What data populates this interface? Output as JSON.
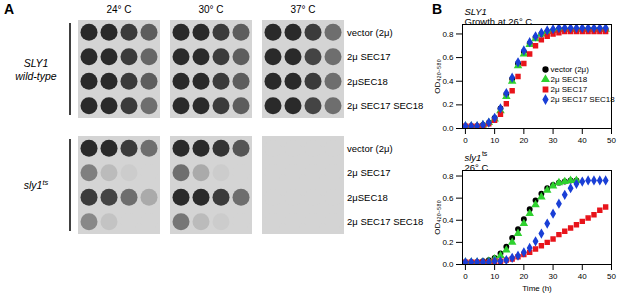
{
  "chart_data": [
    {
      "type": "spot",
      "panel": "A",
      "columns": [
        "24° C",
        "30° C",
        "37° C"
      ],
      "groups": [
        {
          "label": [
            "SLY1",
            "wild-type"
          ],
          "rows": [
            {
              "label": "vector (2μ)",
              "growth": [
                [
                  1,
                  1,
                  0.9,
                  0.7
                ],
                [
                  1,
                  1,
                  0.9,
                  0.7
                ],
                [
                  1,
                  1,
                  0.9,
                  0.6
                ]
              ]
            },
            {
              "label": "2μ SEC17",
              "growth": [
                [
                  1,
                  1,
                  0.9,
                  0.65
                ],
                [
                  1,
                  1,
                  0.9,
                  0.7
                ],
                [
                  1,
                  1,
                  0.85,
                  0.6
                ]
              ]
            },
            {
              "label": "2μSEC18",
              "growth": [
                [
                  1,
                  1,
                  0.9,
                  0.7
                ],
                [
                  1,
                  1,
                  0.9,
                  0.7
                ],
                [
                  1,
                  1,
                  0.9,
                  0.6
                ]
              ]
            },
            {
              "label": "2μ SEC17 SEC18",
              "growth": [
                [
                  1,
                  1,
                  0.9,
                  0.6
                ],
                [
                  1,
                  1,
                  0.9,
                  0.7
                ],
                [
                  1,
                  1,
                  0.85,
                  0.6
                ]
              ]
            }
          ]
        },
        {
          "label": [
            "sly1"
          ],
          "label_sup": "ts",
          "rows": [
            {
              "label": "vector (2μ)",
              "growth": [
                [
                  1,
                  1,
                  0.9,
                  0.6
                ],
                [
                  1,
                  1,
                  0.95,
                  0.75
                ],
                [
                  0,
                  0,
                  0,
                  0
                ]
              ]
            },
            {
              "label": "2μ SEC17",
              "growth": [
                [
                  0.5,
                  0.15,
                  0.05,
                  0
                ],
                [
                  0.6,
                  0.25,
                  0.05,
                  0
                ],
                [
                  0,
                  0,
                  0,
                  0
                ]
              ]
            },
            {
              "label": "2μSEC18",
              "growth": [
                [
                  0.9,
                  0.85,
                  0.6,
                  0.25
                ],
                [
                  1,
                  1,
                  0.9,
                  0.6
                ],
                [
                  0,
                  0,
                  0,
                  0
                ]
              ]
            },
            {
              "label": "2μ SEC17 SEC18",
              "growth": [
                [
                  0.45,
                  0.1,
                  0,
                  0
                ],
                [
                  0.55,
                  0.15,
                  0.05,
                  0
                ],
                [
                  0,
                  0,
                  0,
                  0
                ]
              ]
            }
          ]
        }
      ]
    },
    {
      "type": "scatter",
      "panel": "B",
      "title": "SLY1",
      "subtitle": "Growth at 26° C",
      "ylabel": "OD₄₂₀₋₅₈₀",
      "xlim": [
        -1,
        50
      ],
      "xticks": [
        0,
        10,
        20,
        30,
        40,
        50
      ],
      "ylim": [
        0,
        0.88
      ],
      "yticks": [
        {
          "value": 0,
          "label": "0.0"
        },
        0.2,
        0.4,
        0.6,
        0.8
      ],
      "legend": "right",
      "x": [
        0,
        2,
        4,
        6,
        8,
        10,
        12,
        14,
        16,
        18,
        20,
        22,
        24,
        26,
        28,
        30,
        32,
        34,
        36,
        38,
        40,
        42,
        44,
        46,
        48
      ],
      "series": [
        {
          "name": "vector (2μ)",
          "color": "#000000",
          "marker": "circle",
          "values": [
            0.02,
            0.02,
            0.02,
            0.03,
            0.05,
            0.09,
            0.17,
            0.29,
            0.42,
            0.55,
            0.65,
            0.72,
            0.77,
            0.8,
            0.82,
            0.83,
            0.84,
            0.84,
            0.84,
            0.84,
            0.84,
            0.84,
            0.84,
            0.84,
            0.84
          ]
        },
        {
          "name": "2μ SEC18",
          "color": "#2fd12f",
          "marker": "triangle",
          "values": [
            0.02,
            0.02,
            0.02,
            0.03,
            0.05,
            0.08,
            0.15,
            0.27,
            0.4,
            0.53,
            0.63,
            0.71,
            0.76,
            0.8,
            0.82,
            0.83,
            0.84,
            0.84,
            0.84,
            0.84,
            0.84,
            0.84,
            0.84,
            0.84,
            0.84
          ]
        },
        {
          "name": "2μ SEC17",
          "color": "#e8141b",
          "marker": "square",
          "values": [
            0.02,
            0.02,
            0.02,
            0.02,
            0.04,
            0.07,
            0.12,
            0.21,
            0.32,
            0.44,
            0.55,
            0.63,
            0.7,
            0.75,
            0.78,
            0.8,
            0.81,
            0.82,
            0.82,
            0.82,
            0.82,
            0.82,
            0.82,
            0.82,
            0.82
          ]
        },
        {
          "name": "2μ SEC17 SEC18",
          "color": "#1a3fd6",
          "marker": "diamond",
          "values": [
            0.02,
            0.02,
            0.02,
            0.03,
            0.05,
            0.09,
            0.17,
            0.3,
            0.43,
            0.56,
            0.66,
            0.73,
            0.78,
            0.81,
            0.83,
            0.84,
            0.85,
            0.85,
            0.85,
            0.85,
            0.85,
            0.85,
            0.85,
            0.85,
            0.85
          ]
        }
      ]
    },
    {
      "type": "scatter",
      "title": "sly1",
      "title_sup": "ts",
      "subtitle": "26° C",
      "xlabel": "Time (h)",
      "ylabel": "OD₄₂₀₋₅₈₀",
      "xlim": [
        -1,
        50
      ],
      "xticks": [
        0,
        10,
        20,
        30,
        40,
        50
      ],
      "ylim": [
        0,
        0.85
      ],
      "yticks": [
        {
          "value": 0,
          "label": "0.0"
        },
        0.2,
        0.4,
        0.6,
        0.8
      ],
      "x": [
        0,
        2,
        4,
        6,
        8,
        10,
        12,
        14,
        16,
        18,
        20,
        22,
        24,
        26,
        28,
        30,
        32,
        34,
        36,
        38,
        40,
        42,
        44,
        46,
        48
      ],
      "series": [
        {
          "name": "vector (2μ)",
          "color": "#000000",
          "marker": "circle",
          "values": [
            0.02,
            0.02,
            0.02,
            0.03,
            0.04,
            0.06,
            0.1,
            0.16,
            0.24,
            0.32,
            0.41,
            0.5,
            0.58,
            0.64,
            0.69,
            0.72,
            0.74,
            0.75,
            0.76,
            0.76,
            null,
            null,
            null,
            null,
            null
          ]
        },
        {
          "name": "2μ SEC18",
          "color": "#2fd12f",
          "marker": "triangle",
          "values": [
            0.02,
            0.02,
            0.02,
            0.02,
            0.03,
            0.05,
            0.08,
            0.13,
            0.2,
            0.28,
            0.37,
            0.46,
            0.54,
            0.61,
            0.67,
            0.71,
            0.74,
            0.75,
            0.76,
            0.76,
            null,
            null,
            null,
            null,
            null
          ]
        },
        {
          "name": "2μ SEC17",
          "color": "#e8141b",
          "marker": "square",
          "values": [
            0.02,
            0.02,
            0.02,
            0.02,
            0.02,
            0.03,
            0.03,
            0.04,
            0.05,
            0.07,
            0.09,
            0.11,
            0.14,
            0.17,
            0.2,
            0.23,
            0.27,
            0.3,
            0.33,
            0.36,
            0.39,
            0.42,
            0.45,
            0.49,
            0.52
          ]
        },
        {
          "name": "2μ SEC17 SEC18",
          "color": "#1a3fd6",
          "marker": "diamond",
          "values": [
            0.02,
            0.02,
            0.02,
            0.02,
            0.02,
            0.03,
            0.03,
            0.04,
            0.06,
            0.08,
            0.11,
            0.15,
            0.21,
            0.28,
            0.37,
            0.46,
            0.55,
            0.63,
            0.69,
            0.73,
            0.75,
            0.76,
            0.76,
            0.76,
            0.76
          ]
        }
      ]
    }
  ]
}
